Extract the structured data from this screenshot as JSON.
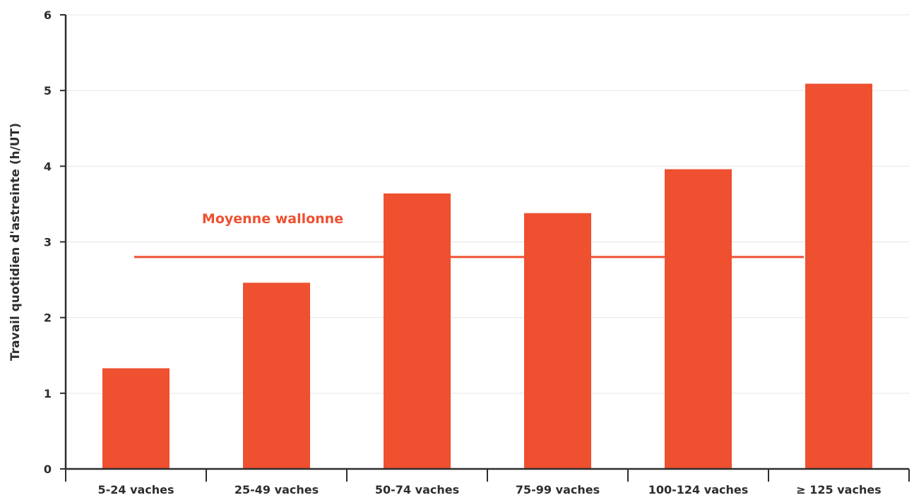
{
  "chart_data": {
    "type": "bar",
    "title": "",
    "xlabel": "",
    "ylabel": "Travail quotidien d'astreinte (h/UT)",
    "categories": [
      "5-24 vaches",
      "25-49 vaches",
      "50-74 vaches",
      "75-99 vaches",
      "100-124 vaches",
      "≥ 125 vaches"
    ],
    "values": [
      1.33,
      2.46,
      3.64,
      3.38,
      3.96,
      5.09
    ],
    "ylim": [
      0,
      6
    ],
    "yticks": [
      "0",
      "1",
      "2",
      "3",
      "4",
      "5",
      "6"
    ],
    "grid": true,
    "bar_color": "#ee5030",
    "reference_line": {
      "label": "Moyenne wallonne",
      "value": 2.8,
      "color": "#ee5030"
    }
  }
}
